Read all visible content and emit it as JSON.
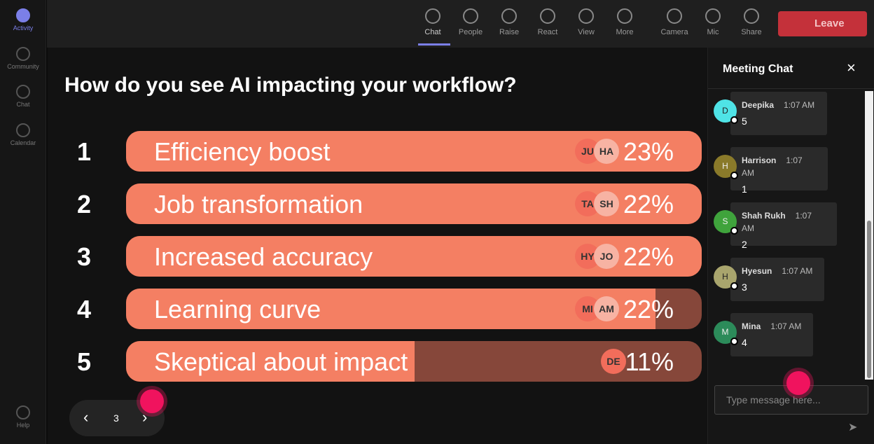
{
  "sidebar": [
    "Activity",
    "Community",
    "Chat",
    "Calendar",
    "Help"
  ],
  "toolbar": {
    "items": [
      "Chat",
      "People",
      "Raise",
      "React",
      "View",
      "More",
      "Camera",
      "Mic",
      "Share"
    ],
    "leave": "Leave"
  },
  "poll": {
    "question": "How do you see AI impacting your workflow?",
    "options": [
      {
        "number": "1",
        "text": "Efficiency boost",
        "avatars": [
          "JU",
          "HA"
        ],
        "percent": "23%"
      },
      {
        "number": "2",
        "text": "Job transformation",
        "avatars": [
          "TA",
          "SH"
        ],
        "percent": "22%"
      },
      {
        "number": "3",
        "text": "Increased accuracy",
        "avatars": [
          "HY",
          "JO"
        ],
        "percent": "22%"
      },
      {
        "number": "4",
        "text": "Learning curve",
        "avatars": [
          "MI",
          "AM"
        ],
        "percent": "22%"
      },
      {
        "number": "5",
        "text": "Skeptical about impact",
        "avatars": [
          "DE"
        ],
        "percent": "11%"
      }
    ],
    "page": "3"
  },
  "chat": {
    "title": "Meeting Chat",
    "messages": [
      {
        "initial": "D",
        "name": "Deepika",
        "time": "1:07 AM",
        "text": "5"
      },
      {
        "initial": "H",
        "name": "Harrison",
        "time": "1:07 AM",
        "text": "1"
      },
      {
        "initial": "S",
        "name": "Shah Rukh",
        "time": "1:07 AM",
        "text": "2"
      },
      {
        "initial": "H",
        "name": "Hyesun",
        "time": "1:07 AM",
        "text": "3"
      },
      {
        "initial": "M",
        "name": "Mina",
        "time": "1:07 AM",
        "text": "4"
      }
    ],
    "placeholder": "Type message here..."
  }
}
